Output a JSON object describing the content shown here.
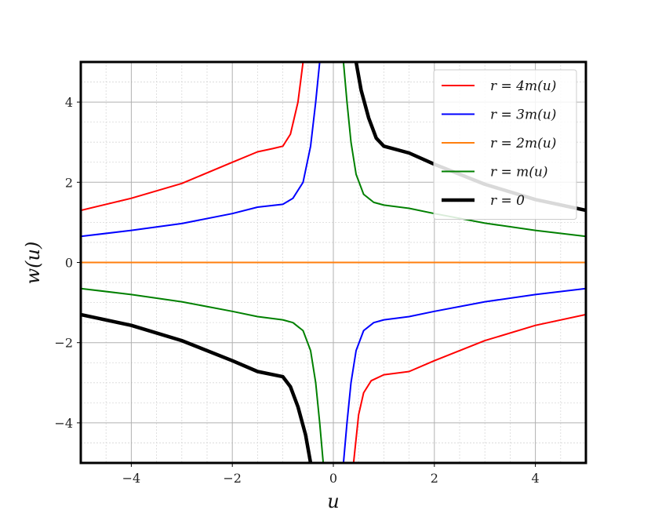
{
  "chart_data": {
    "type": "line",
    "title": "",
    "xlabel": "u",
    "ylabel": "w(u)",
    "xlim": [
      -5,
      5
    ],
    "ylim": [
      -5,
      5
    ],
    "xticks": [
      -4,
      -2,
      0,
      2,
      4
    ],
    "yticks": [
      -4,
      -2,
      0,
      2,
      4
    ],
    "xtick_labels": [
      "−4",
      "−2",
      "0",
      "2",
      "4"
    ],
    "ytick_labels": [
      "−4",
      "−2",
      "0",
      "2",
      "4"
    ],
    "grid": "major and minor",
    "legend_position": "top-right",
    "series": [
      {
        "name": "r = 4m(u)",
        "color": "#ff0000",
        "linewidth": "normal",
        "points": [
          [
            [
              -5.0,
              1.3
            ],
            [
              -4.0,
              1.6
            ],
            [
              -3.0,
              1.97
            ],
            [
              -2.0,
              2.5
            ],
            [
              -1.5,
              2.76
            ],
            [
              -1.2,
              2.84
            ],
            [
              -1.0,
              2.9
            ],
            [
              -0.85,
              3.2
            ],
            [
              -0.7,
              4.0
            ],
            [
              -0.6,
              5.0
            ]
          ],
          [
            [
              0.4,
              -5.0
            ],
            [
              0.5,
              -3.8
            ],
            [
              0.6,
              -3.25
            ],
            [
              0.75,
              -2.95
            ],
            [
              1.0,
              -2.8
            ],
            [
              1.5,
              -2.72
            ],
            [
              2.0,
              -2.45
            ],
            [
              3.0,
              -1.95
            ],
            [
              4.0,
              -1.57
            ],
            [
              5.0,
              -1.3
            ]
          ]
        ]
      },
      {
        "name": "r = 3m(u)",
        "color": "#0000ff",
        "linewidth": "normal",
        "points": [
          [
            [
              -5.0,
              0.65
            ],
            [
              -4.0,
              0.8
            ],
            [
              -3.0,
              0.97
            ],
            [
              -2.0,
              1.22
            ],
            [
              -1.5,
              1.38
            ],
            [
              -1.0,
              1.45
            ],
            [
              -0.8,
              1.6
            ],
            [
              -0.6,
              2.0
            ],
            [
              -0.45,
              2.9
            ],
            [
              -0.35,
              4.0
            ],
            [
              -0.27,
              5.0
            ]
          ],
          [
            [
              0.2,
              -5.0
            ],
            [
              0.27,
              -4.0
            ],
            [
              0.35,
              -3.0
            ],
            [
              0.45,
              -2.2
            ],
            [
              0.6,
              -1.7
            ],
            [
              0.8,
              -1.5
            ],
            [
              1.0,
              -1.43
            ],
            [
              1.5,
              -1.35
            ],
            [
              2.0,
              -1.22
            ],
            [
              3.0,
              -0.98
            ],
            [
              4.0,
              -0.8
            ],
            [
              5.0,
              -0.65
            ]
          ]
        ]
      },
      {
        "name": "r = 2m(u)",
        "color": "#ff7f0e",
        "linewidth": "normal",
        "points": [
          [
            [
              -5.0,
              0.0
            ],
            [
              5.0,
              0.0
            ]
          ]
        ]
      },
      {
        "name": "r = m(u)",
        "color": "#008000",
        "linewidth": "normal",
        "points": [
          [
            [
              -5.0,
              -0.65
            ],
            [
              -4.0,
              -0.8
            ],
            [
              -3.0,
              -0.98
            ],
            [
              -2.0,
              -1.22
            ],
            [
              -1.5,
              -1.35
            ],
            [
              -1.0,
              -1.43
            ],
            [
              -0.8,
              -1.5
            ],
            [
              -0.6,
              -1.7
            ],
            [
              -0.45,
              -2.2
            ],
            [
              -0.35,
              -3.0
            ],
            [
              -0.27,
              -4.0
            ],
            [
              -0.2,
              -5.0
            ]
          ],
          [
            [
              0.2,
              5.0
            ],
            [
              0.27,
              4.0
            ],
            [
              0.35,
              3.0
            ],
            [
              0.45,
              2.2
            ],
            [
              0.6,
              1.7
            ],
            [
              0.8,
              1.5
            ],
            [
              1.0,
              1.43
            ],
            [
              1.5,
              1.35
            ],
            [
              2.0,
              1.22
            ],
            [
              3.0,
              0.98
            ],
            [
              4.0,
              0.8
            ],
            [
              5.0,
              0.65
            ]
          ]
        ]
      },
      {
        "name": "r = 0",
        "color": "#000000",
        "linewidth": "thick",
        "points": [
          [
            [
              -5.0,
              -1.3
            ],
            [
              -4.0,
              -1.57
            ],
            [
              -3.0,
              -1.95
            ],
            [
              -2.0,
              -2.45
            ],
            [
              -1.5,
              -2.72
            ],
            [
              -1.0,
              -2.85
            ],
            [
              -0.85,
              -3.1
            ],
            [
              -0.7,
              -3.6
            ],
            [
              -0.55,
              -4.3
            ],
            [
              -0.45,
              -5.0
            ]
          ],
          [
            [
              0.45,
              5.0
            ],
            [
              0.55,
              4.3
            ],
            [
              0.7,
              3.6
            ],
            [
              0.85,
              3.1
            ],
            [
              1.0,
              2.9
            ],
            [
              1.5,
              2.73
            ],
            [
              2.0,
              2.45
            ],
            [
              3.0,
              1.95
            ],
            [
              4.0,
              1.57
            ],
            [
              5.0,
              1.3
            ]
          ]
        ]
      }
    ]
  }
}
